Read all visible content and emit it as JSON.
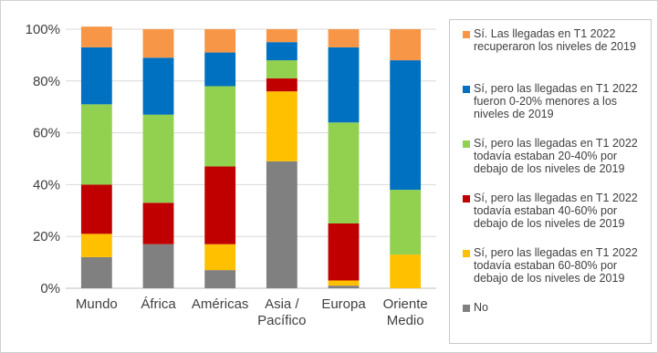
{
  "chart_data": {
    "type": "bar",
    "stacked": true,
    "categories": [
      "Mundo",
      "África",
      "Américas",
      "Asia / Pacífico",
      "Europa",
      "Oriente Medio"
    ],
    "category_lines": [
      [
        "Mundo"
      ],
      [
        "África"
      ],
      [
        "Américas"
      ],
      [
        "Asia /",
        "Pacífico"
      ],
      [
        "Europa"
      ],
      [
        "Oriente",
        "Medio"
      ]
    ],
    "ylim": [
      0,
      100
    ],
    "yticks": [
      0,
      20,
      40,
      60,
      80,
      100
    ],
    "ytick_labels": [
      "0%",
      "20%",
      "40%",
      "60%",
      "80%",
      "100%"
    ],
    "grid": true,
    "legend_position": "right",
    "series": [
      {
        "name": "No",
        "name_lines": [
          "No"
        ],
        "color": "#808080",
        "values": [
          12,
          17,
          7,
          49,
          1,
          0
        ]
      },
      {
        "name": "Sí, pero las llegadas en T1 2022 todavía estaban 60-80% por debajo de los niveles de 2019",
        "name_lines": [
          "Sí, pero las llegadas en T1 2022",
          "todavía estaban 60-80% por",
          "debajo de los niveles de 2019"
        ],
        "color": "#ffc000",
        "values": [
          9,
          0,
          10,
          27,
          2,
          13
        ]
      },
      {
        "name": "Sí, pero las llegadas en T1 2022 todavía estaban 40-60% por debajo de los niveles de 2019",
        "name_lines": [
          "Sí, pero las llegadas en T1 2022",
          "todavía estaban 40-60% por",
          "debajo de los niveles de 2019"
        ],
        "color": "#c00000",
        "values": [
          19,
          16,
          30,
          5,
          22,
          0
        ]
      },
      {
        "name": "Sí, pero las llegadas en T1 2022 todavía estaban 20-40% por debajo de los niveles de 2019",
        "name_lines": [
          "Sí, pero las llegadas en T1 2022",
          "todavía estaban 20-40% por",
          "debajo de los niveles de 2019"
        ],
        "color": "#92d050",
        "values": [
          31,
          34,
          31,
          7,
          39,
          25
        ]
      },
      {
        "name": "Sí, pero las llegadas en T1 2022 fueron 0-20% menores a los niveles de 2019",
        "name_lines": [
          "Sí, pero las llegadas en T1 2022",
          "fueron 0-20% menores a los",
          "niveles de 2019"
        ],
        "color": "#0070c0",
        "values": [
          22,
          22,
          13,
          7,
          29,
          50
        ]
      },
      {
        "name": "Sí. Las llegadas en T1 2022 recuperaron los niveles de 2019",
        "name_lines": [
          "Sí. Las llegadas en T1 2022",
          "recuperaron los niveles de 2019"
        ],
        "color": "#f79646",
        "values": [
          8,
          11,
          9,
          5,
          7,
          12
        ]
      }
    ],
    "legend_order": [
      5,
      4,
      3,
      2,
      1,
      0
    ]
  }
}
